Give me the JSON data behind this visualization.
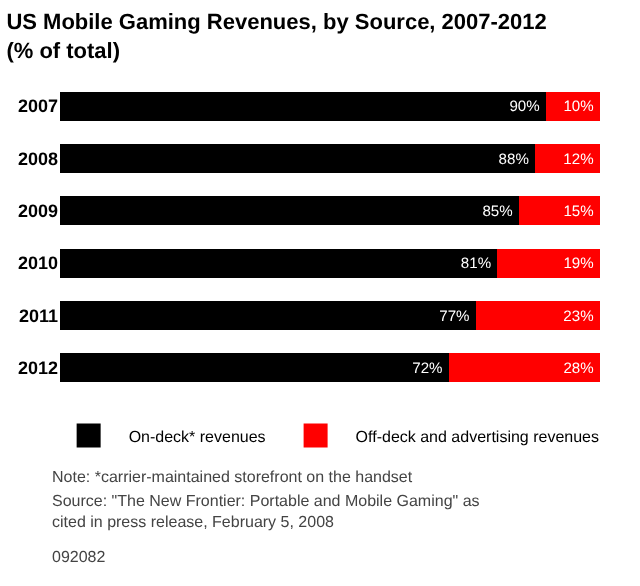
{
  "chart_data": {
    "type": "bar",
    "title": "US Mobile Gaming Revenues, by Source, 2007-2012 (% of total)",
    "orientation": "horizontal",
    "stacked": true,
    "tick_labels": "y",
    "legend": "bottom",
    "grid": false,
    "categories": [
      "2007",
      "2008",
      "2009",
      "2010",
      "2011",
      "2012"
    ],
    "series": [
      {
        "name": "On-deck* revenues",
        "color": "#000000",
        "values": [
          90,
          88,
          85,
          81,
          77,
          72
        ],
        "value_labels": [
          "90%",
          "88%",
          "85%",
          "81%",
          "77%",
          "72%"
        ]
      },
      {
        "name": "Off-deck and advertising revenues",
        "color": "#ff0000",
        "values": [
          10,
          12,
          15,
          19,
          23,
          28
        ],
        "value_labels": [
          "10%",
          "12%",
          "15%",
          "19%",
          "23%",
          "28%"
        ]
      }
    ],
    "annotations": [
      "Note: *carrier-maintained storefront on the handset",
      "Source: \"The New Frontier: Portable and Mobile Gaming\" as cited in press release, February 5, 2008",
      "092082"
    ]
  }
}
